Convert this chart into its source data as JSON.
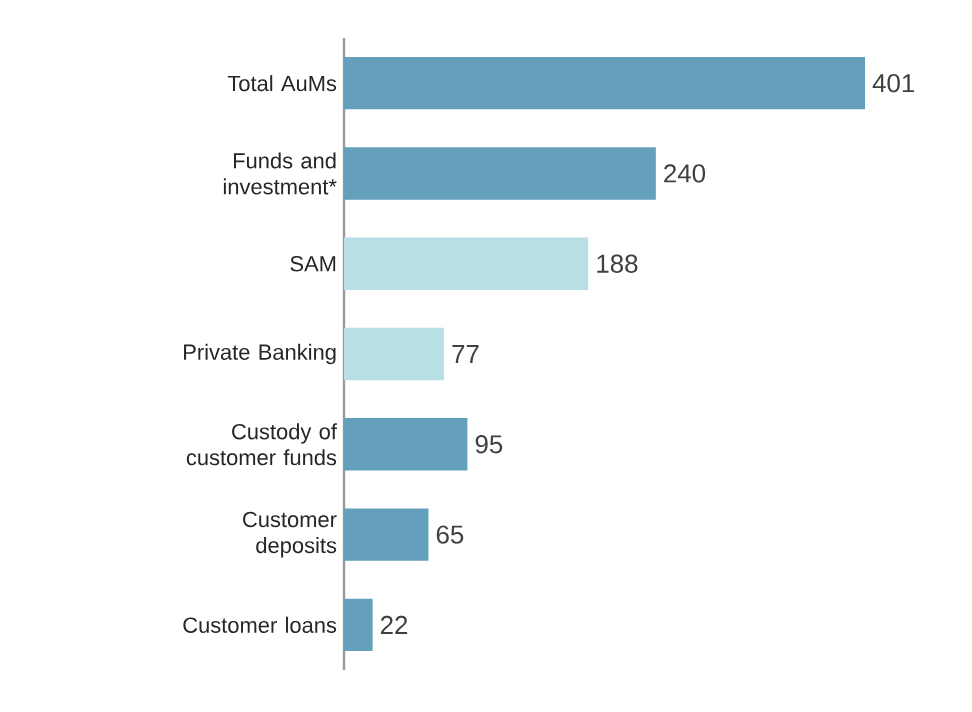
{
  "chart_data": {
    "type": "bar",
    "orientation": "horizontal",
    "categories": [
      "Total AuMs",
      "Funds and investment*",
      "SAM",
      "Private Banking",
      "Custody of customer funds",
      "Customer deposits",
      "Customer loans"
    ],
    "values": [
      401,
      240,
      188,
      77,
      95,
      65,
      22
    ],
    "colors": [
      "#649fbb",
      "#649fbb",
      "#b8dfe6",
      "#b8dfe6",
      "#649fbb",
      "#649fbb",
      "#649fbb"
    ],
    "data_labels": true
  }
}
